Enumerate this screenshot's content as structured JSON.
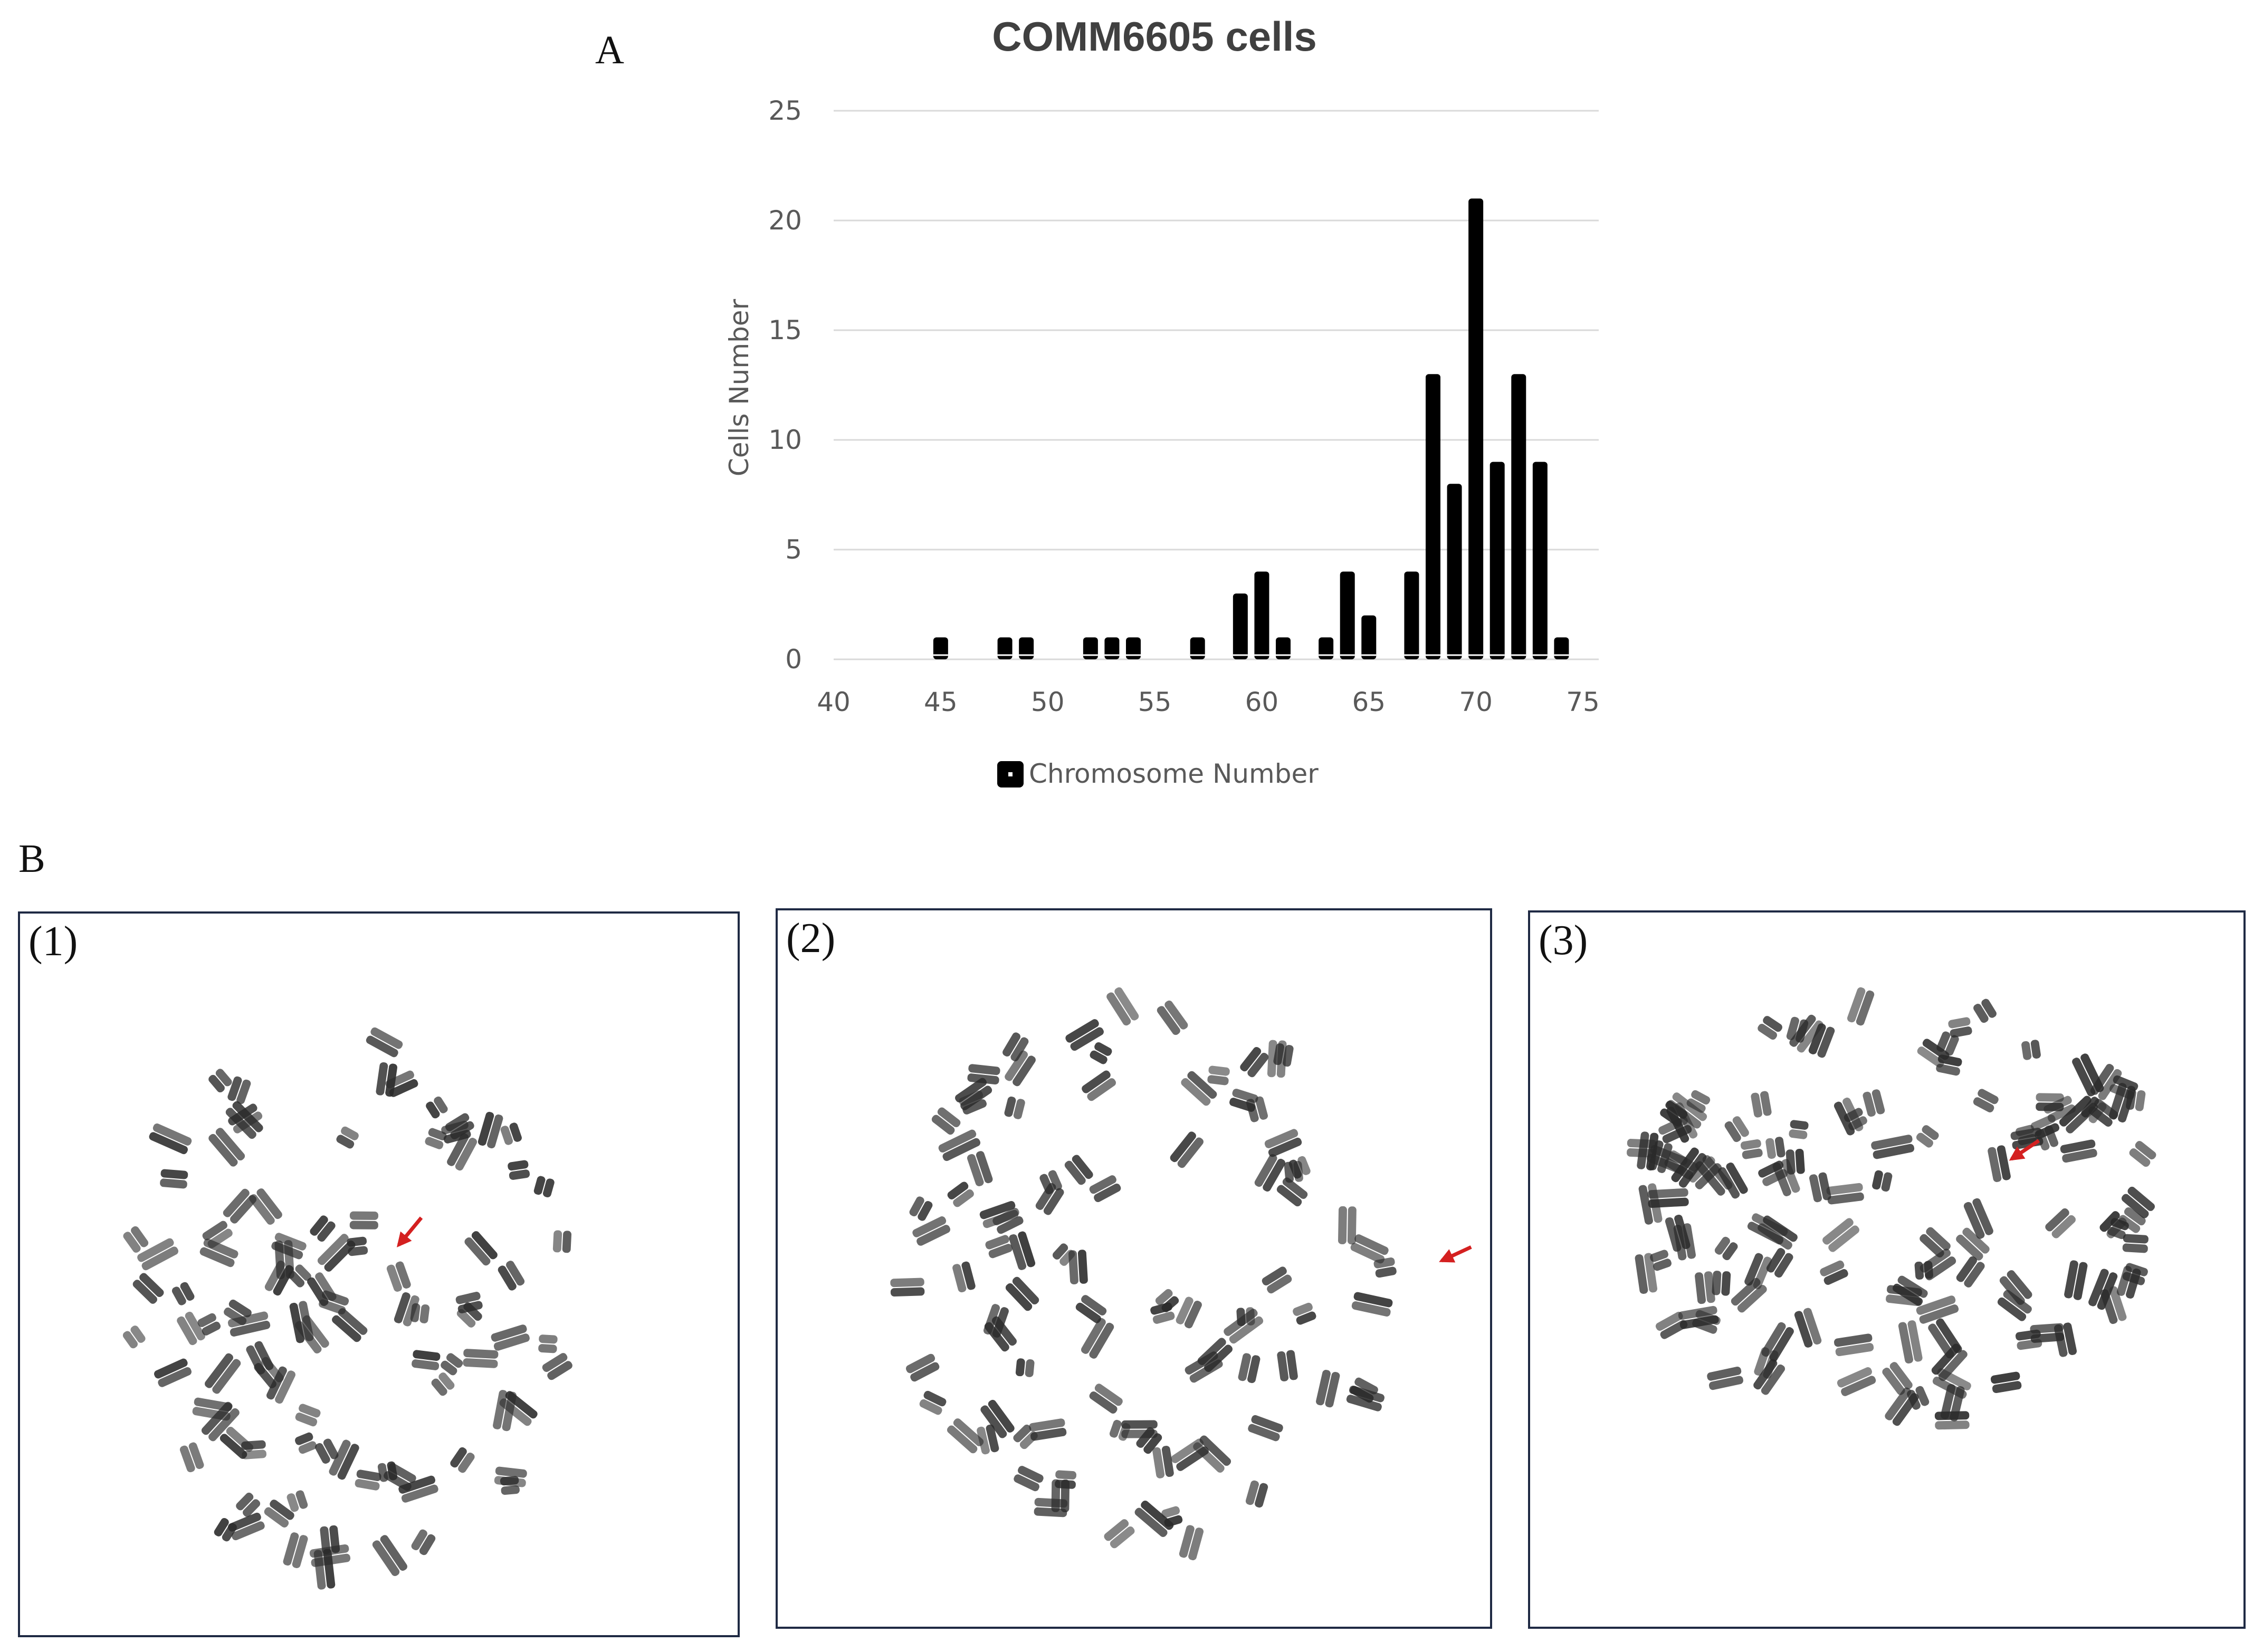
{
  "figure": {
    "panel_a_label": "A",
    "panel_b_label": "B"
  },
  "chart_data": {
    "type": "bar",
    "title": "COMM6605 cells",
    "xlabel": "",
    "ylabel": "Cells Number",
    "legend": "Chromosome Number",
    "legend_position": "bottom",
    "x": [
      45,
      48,
      49,
      52,
      53,
      54,
      57,
      59,
      60,
      61,
      63,
      64,
      65,
      67,
      68,
      69,
      70,
      71,
      72,
      73,
      74
    ],
    "values": [
      1,
      1,
      1,
      1,
      1,
      1,
      1,
      3,
      4,
      1,
      1,
      4,
      2,
      4,
      13,
      8,
      21,
      9,
      13,
      9,
      1
    ],
    "xlim": [
      40,
      75
    ],
    "ylim": [
      0,
      25
    ],
    "xticks": [
      40,
      45,
      50,
      55,
      60,
      65,
      70,
      75
    ],
    "yticks": [
      0,
      5,
      10,
      15,
      20,
      25
    ],
    "grid": true,
    "bar_color": "#000000",
    "grid_color": "#d9d9d9",
    "text_color": "#595959"
  },
  "metaphase_panels": [
    {
      "label": "(1)"
    },
    {
      "label": "(2)"
    },
    {
      "label": "(3)"
    }
  ],
  "colors": {
    "panel_border": "#1f2a44",
    "arrow": "#d42020",
    "chromosome": "#2a2a2a"
  }
}
